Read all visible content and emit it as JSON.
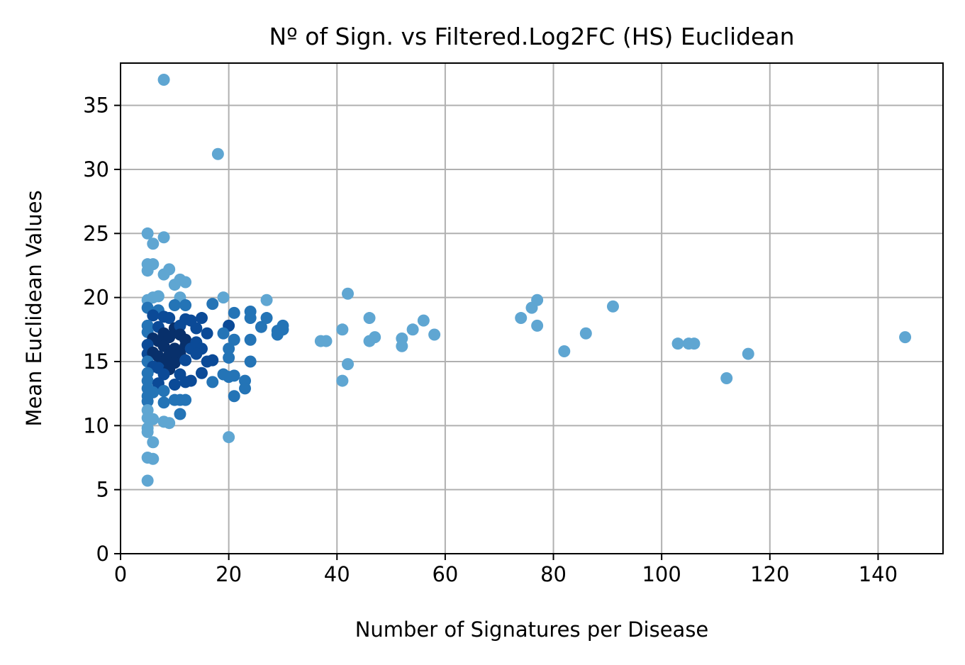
{
  "chart_data": {
    "type": "scatter",
    "title": "Nº of Sign. vs Filtered.Log2FC (HS) Euclidean",
    "xlabel": "Number of Signatures per Disease",
    "ylabel": "Mean Euclidean Values",
    "xlim": [
      0,
      152
    ],
    "ylim": [
      0,
      38.3
    ],
    "xticks": [
      0,
      20,
      40,
      60,
      80,
      100,
      120,
      140
    ],
    "yticks": [
      0,
      5,
      10,
      15,
      20,
      25,
      30,
      35
    ],
    "grid": true,
    "legend": "none",
    "colors": {
      "light": "#5fa6d2",
      "mid": "#2474b6",
      "dark": "#0b4a97",
      "darkest": "#08306b",
      "grid": "#b0b0b0"
    },
    "points": [
      {
        "x": 8,
        "y": 37.0,
        "c": "light"
      },
      {
        "x": 18,
        "y": 31.2,
        "c": "light"
      },
      {
        "x": 5,
        "y": 25.0,
        "c": "light"
      },
      {
        "x": 6,
        "y": 24.2,
        "c": "light"
      },
      {
        "x": 8,
        "y": 24.7,
        "c": "light"
      },
      {
        "x": 5,
        "y": 22.6,
        "c": "light"
      },
      {
        "x": 6,
        "y": 22.6,
        "c": "light"
      },
      {
        "x": 5,
        "y": 22.1,
        "c": "light"
      },
      {
        "x": 8,
        "y": 21.8,
        "c": "light"
      },
      {
        "x": 9,
        "y": 22.2,
        "c": "light"
      },
      {
        "x": 10,
        "y": 21.0,
        "c": "light"
      },
      {
        "x": 11,
        "y": 21.4,
        "c": "light"
      },
      {
        "x": 12,
        "y": 21.2,
        "c": "light"
      },
      {
        "x": 5,
        "y": 19.8,
        "c": "light"
      },
      {
        "x": 6,
        "y": 20.0,
        "c": "light"
      },
      {
        "x": 7,
        "y": 20.1,
        "c": "light"
      },
      {
        "x": 11,
        "y": 20.0,
        "c": "light"
      },
      {
        "x": 19,
        "y": 20.0,
        "c": "light"
      },
      {
        "x": 27,
        "y": 19.8,
        "c": "light"
      },
      {
        "x": 42,
        "y": 20.3,
        "c": "light"
      },
      {
        "x": 5,
        "y": 19.2,
        "c": "mid"
      },
      {
        "x": 7,
        "y": 19.0,
        "c": "mid"
      },
      {
        "x": 10,
        "y": 19.4,
        "c": "mid"
      },
      {
        "x": 12,
        "y": 19.4,
        "c": "mid"
      },
      {
        "x": 17,
        "y": 19.5,
        "c": "mid"
      },
      {
        "x": 21,
        "y": 18.8,
        "c": "mid"
      },
      {
        "x": 24,
        "y": 18.9,
        "c": "mid"
      },
      {
        "x": 6,
        "y": 18.6,
        "c": "dark"
      },
      {
        "x": 8,
        "y": 18.5,
        "c": "dark"
      },
      {
        "x": 9,
        "y": 18.4,
        "c": "dark"
      },
      {
        "x": 12,
        "y": 18.3,
        "c": "dark"
      },
      {
        "x": 13,
        "y": 18.2,
        "c": "dark"
      },
      {
        "x": 15,
        "y": 18.4,
        "c": "dark"
      },
      {
        "x": 24,
        "y": 18.4,
        "c": "mid"
      },
      {
        "x": 27,
        "y": 18.4,
        "c": "mid"
      },
      {
        "x": 46,
        "y": 18.4,
        "c": "light"
      },
      {
        "x": 56,
        "y": 18.2,
        "c": "light"
      },
      {
        "x": 74,
        "y": 18.4,
        "c": "light"
      },
      {
        "x": 76,
        "y": 19.2,
        "c": "light"
      },
      {
        "x": 77,
        "y": 19.8,
        "c": "light"
      },
      {
        "x": 91,
        "y": 19.3,
        "c": "light"
      },
      {
        "x": 5,
        "y": 17.8,
        "c": "mid"
      },
      {
        "x": 7,
        "y": 17.7,
        "c": "dark"
      },
      {
        "x": 10,
        "y": 17.6,
        "c": "darkest"
      },
      {
        "x": 11,
        "y": 17.8,
        "c": "dark"
      },
      {
        "x": 14,
        "y": 17.6,
        "c": "dark"
      },
      {
        "x": 20,
        "y": 17.8,
        "c": "dark"
      },
      {
        "x": 26,
        "y": 17.7,
        "c": "mid"
      },
      {
        "x": 30,
        "y": 17.8,
        "c": "mid"
      },
      {
        "x": 77,
        "y": 17.8,
        "c": "light"
      },
      {
        "x": 5,
        "y": 17.3,
        "c": "mid"
      },
      {
        "x": 8,
        "y": 17.2,
        "c": "darkest"
      },
      {
        "x": 11,
        "y": 17.1,
        "c": "darkest"
      },
      {
        "x": 16,
        "y": 17.2,
        "c": "dark"
      },
      {
        "x": 19,
        "y": 17.2,
        "c": "mid"
      },
      {
        "x": 29,
        "y": 17.4,
        "c": "mid"
      },
      {
        "x": 29,
        "y": 17.1,
        "c": "mid"
      },
      {
        "x": 30,
        "y": 17.5,
        "c": "mid"
      },
      {
        "x": 41,
        "y": 17.5,
        "c": "light"
      },
      {
        "x": 54,
        "y": 17.5,
        "c": "light"
      },
      {
        "x": 58,
        "y": 17.1,
        "c": "light"
      },
      {
        "x": 86,
        "y": 17.2,
        "c": "light"
      },
      {
        "x": 145,
        "y": 16.9,
        "c": "light"
      },
      {
        "x": 6,
        "y": 16.8,
        "c": "darkest"
      },
      {
        "x": 7,
        "y": 16.6,
        "c": "darkest"
      },
      {
        "x": 9,
        "y": 16.9,
        "c": "darkest"
      },
      {
        "x": 12,
        "y": 16.7,
        "c": "darkest"
      },
      {
        "x": 14,
        "y": 16.5,
        "c": "dark"
      },
      {
        "x": 21,
        "y": 16.7,
        "c": "mid"
      },
      {
        "x": 24,
        "y": 16.7,
        "c": "mid"
      },
      {
        "x": 37,
        "y": 16.6,
        "c": "light"
      },
      {
        "x": 38,
        "y": 16.6,
        "c": "light"
      },
      {
        "x": 46,
        "y": 16.6,
        "c": "light"
      },
      {
        "x": 47,
        "y": 16.9,
        "c": "light"
      },
      {
        "x": 52,
        "y": 16.8,
        "c": "light"
      },
      {
        "x": 5,
        "y": 16.3,
        "c": "dark"
      },
      {
        "x": 8,
        "y": 16.2,
        "c": "darkest"
      },
      {
        "x": 10,
        "y": 16.0,
        "c": "darkest"
      },
      {
        "x": 12,
        "y": 16.2,
        "c": "darkest"
      },
      {
        "x": 13,
        "y": 16.0,
        "c": "dark"
      },
      {
        "x": 15,
        "y": 16.0,
        "c": "dark"
      },
      {
        "x": 20,
        "y": 16.0,
        "c": "mid"
      },
      {
        "x": 52,
        "y": 16.2,
        "c": "light"
      },
      {
        "x": 103,
        "y": 16.4,
        "c": "light"
      },
      {
        "x": 105,
        "y": 16.4,
        "c": "light"
      },
      {
        "x": 106,
        "y": 16.4,
        "c": "light"
      },
      {
        "x": 5,
        "y": 15.6,
        "c": "dark"
      },
      {
        "x": 6,
        "y": 15.7,
        "c": "darkest"
      },
      {
        "x": 7,
        "y": 15.4,
        "c": "darkest"
      },
      {
        "x": 9,
        "y": 15.5,
        "c": "darkest"
      },
      {
        "x": 11,
        "y": 15.6,
        "c": "darkest"
      },
      {
        "x": 14,
        "y": 15.6,
        "c": "dark"
      },
      {
        "x": 17,
        "y": 15.1,
        "c": "dark"
      },
      {
        "x": 20,
        "y": 15.3,
        "c": "mid"
      },
      {
        "x": 82,
        "y": 15.8,
        "c": "light"
      },
      {
        "x": 116,
        "y": 15.6,
        "c": "light"
      },
      {
        "x": 5,
        "y": 15.0,
        "c": "mid"
      },
      {
        "x": 8,
        "y": 15.0,
        "c": "darkest"
      },
      {
        "x": 10,
        "y": 14.9,
        "c": "darkest"
      },
      {
        "x": 12,
        "y": 15.1,
        "c": "dark"
      },
      {
        "x": 16,
        "y": 15.0,
        "c": "dark"
      },
      {
        "x": 24,
        "y": 15.0,
        "c": "mid"
      },
      {
        "x": 42,
        "y": 14.8,
        "c": "light"
      },
      {
        "x": 6,
        "y": 14.6,
        "c": "dark"
      },
      {
        "x": 7,
        "y": 14.5,
        "c": "dark"
      },
      {
        "x": 9,
        "y": 14.4,
        "c": "darkest"
      },
      {
        "x": 5,
        "y": 14.1,
        "c": "mid"
      },
      {
        "x": 8,
        "y": 14.0,
        "c": "dark"
      },
      {
        "x": 11,
        "y": 14.0,
        "c": "dark"
      },
      {
        "x": 15,
        "y": 14.1,
        "c": "dark"
      },
      {
        "x": 19,
        "y": 14.0,
        "c": "mid"
      },
      {
        "x": 21,
        "y": 13.9,
        "c": "mid"
      },
      {
        "x": 20,
        "y": 13.8,
        "c": "mid"
      },
      {
        "x": 5,
        "y": 13.5,
        "c": "mid"
      },
      {
        "x": 7,
        "y": 13.3,
        "c": "dark"
      },
      {
        "x": 10,
        "y": 13.2,
        "c": "dark"
      },
      {
        "x": 12,
        "y": 13.4,
        "c": "dark"
      },
      {
        "x": 13,
        "y": 13.5,
        "c": "dark"
      },
      {
        "x": 17,
        "y": 13.4,
        "c": "mid"
      },
      {
        "x": 23,
        "y": 13.5,
        "c": "mid"
      },
      {
        "x": 41,
        "y": 13.5,
        "c": "light"
      },
      {
        "x": 112,
        "y": 13.7,
        "c": "light"
      },
      {
        "x": 5,
        "y": 12.9,
        "c": "mid"
      },
      {
        "x": 6,
        "y": 12.6,
        "c": "mid"
      },
      {
        "x": 8,
        "y": 12.7,
        "c": "mid"
      },
      {
        "x": 23,
        "y": 12.9,
        "c": "mid"
      },
      {
        "x": 5,
        "y": 12.3,
        "c": "mid"
      },
      {
        "x": 21,
        "y": 12.3,
        "c": "mid"
      },
      {
        "x": 5,
        "y": 11.9,
        "c": "mid"
      },
      {
        "x": 8,
        "y": 11.8,
        "c": "mid"
      },
      {
        "x": 10,
        "y": 12.0,
        "c": "mid"
      },
      {
        "x": 11,
        "y": 12.0,
        "c": "mid"
      },
      {
        "x": 12,
        "y": 12.0,
        "c": "mid"
      },
      {
        "x": 5,
        "y": 11.2,
        "c": "light"
      },
      {
        "x": 11,
        "y": 10.9,
        "c": "mid"
      },
      {
        "x": 5,
        "y": 10.6,
        "c": "light"
      },
      {
        "x": 6,
        "y": 10.5,
        "c": "light"
      },
      {
        "x": 8,
        "y": 10.3,
        "c": "light"
      },
      {
        "x": 9,
        "y": 10.2,
        "c": "light"
      },
      {
        "x": 5,
        "y": 9.8,
        "c": "light"
      },
      {
        "x": 5,
        "y": 9.5,
        "c": "light"
      },
      {
        "x": 20,
        "y": 9.1,
        "c": "light"
      },
      {
        "x": 6,
        "y": 8.7,
        "c": "light"
      },
      {
        "x": 5,
        "y": 7.5,
        "c": "light"
      },
      {
        "x": 6,
        "y": 7.4,
        "c": "light"
      },
      {
        "x": 5,
        "y": 5.7,
        "c": "light"
      }
    ]
  }
}
